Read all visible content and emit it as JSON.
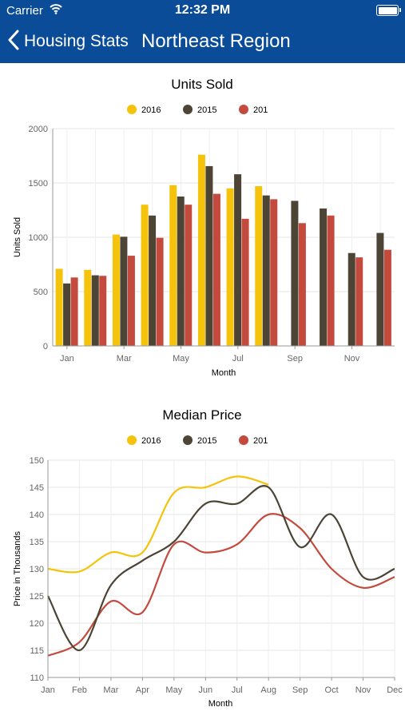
{
  "status_bar": {
    "carrier": "Carrier",
    "time": "12:32 PM",
    "wifi_icon": "wifi-icon",
    "battery_icon": "battery-icon"
  },
  "nav": {
    "back_label": "Housing Stats",
    "title": "Northeast Region",
    "back_icon": "chevron-left-icon",
    "bar_color": "#0a4c97"
  },
  "chart_data": [
    {
      "type": "bar",
      "title": "Units Sold",
      "xlabel": "Month",
      "ylabel": "Units Sold",
      "ylim": [
        0,
        2000
      ],
      "yticks": [
        0,
        500,
        1000,
        1500,
        2000
      ],
      "categories": [
        "Jan",
        "Feb",
        "Mar",
        "Apr",
        "May",
        "Jun",
        "Jul",
        "Aug",
        "Sep",
        "Oct",
        "Nov",
        "Dec"
      ],
      "xtick_labels": [
        "Jan",
        "Mar",
        "May",
        "Jul",
        "Sep",
        "Nov"
      ],
      "legend_position": "top-center",
      "grid": true,
      "series": [
        {
          "name": "2016",
          "color": "#f5c30b",
          "values": [
            710,
            700,
            1025,
            1300,
            1480,
            1760,
            1450,
            1470,
            null,
            null,
            null,
            null
          ]
        },
        {
          "name": "2015",
          "color": "#4c4536",
          "values": [
            575,
            650,
            1005,
            1200,
            1375,
            1655,
            1580,
            1385,
            1335,
            1265,
            855,
            1040
          ]
        },
        {
          "name": "201",
          "color": "#c34a3d",
          "values": [
            630,
            645,
            830,
            995,
            1300,
            1400,
            1170,
            1350,
            1130,
            1200,
            815,
            885
          ]
        }
      ]
    },
    {
      "type": "line",
      "title": "Median Price",
      "xlabel": "Month",
      "ylabel": "Price in Thousands",
      "ylim": [
        110,
        150
      ],
      "yticks": [
        110,
        115,
        120,
        125,
        130,
        135,
        140,
        145,
        150
      ],
      "categories": [
        "Jan",
        "Feb",
        "Mar",
        "Apr",
        "May",
        "Jun",
        "Jul",
        "Aug",
        "Sep",
        "Oct",
        "Nov",
        "Dec"
      ],
      "legend_position": "top-center",
      "grid": true,
      "series": [
        {
          "name": "2016",
          "color": "#f5c30b",
          "values": [
            130,
            129.5,
            133,
            133,
            144,
            145,
            147,
            145.5,
            null,
            null,
            null,
            null
          ]
        },
        {
          "name": "2015",
          "color": "#4c4536",
          "values": [
            125,
            115,
            127,
            131.5,
            135,
            142,
            142,
            145,
            134,
            140,
            128.5,
            130
          ]
        },
        {
          "name": "201",
          "color": "#c34a3d",
          "values": [
            114,
            116.5,
            124,
            122,
            134.5,
            133,
            134.5,
            140,
            137.5,
            130,
            126.5,
            128.5
          ]
        }
      ]
    }
  ]
}
